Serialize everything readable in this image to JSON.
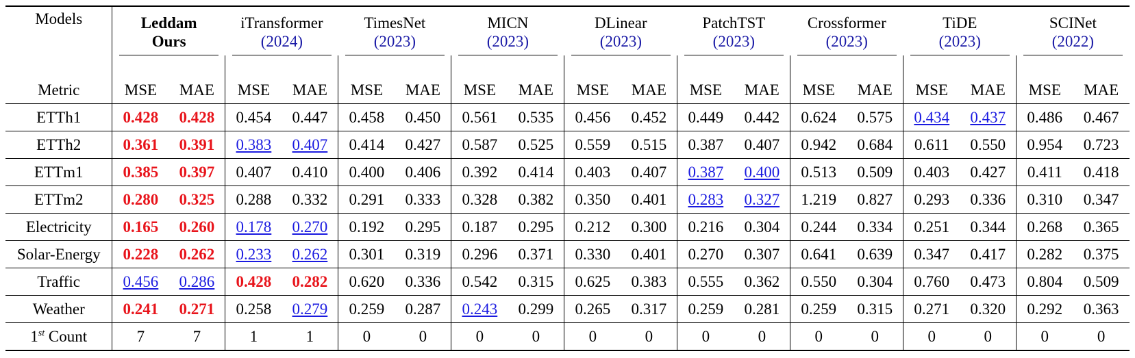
{
  "header": {
    "models_label": "Models",
    "metric_label": "Metric",
    "metrics": [
      "MSE",
      "MAE"
    ],
    "models": [
      {
        "name": "Leddam",
        "sub": "Ours"
      },
      {
        "name": "iTransformer",
        "year": "(2024)"
      },
      {
        "name": "TimesNet",
        "year": "(2023)"
      },
      {
        "name": "MICN",
        "year": "(2023)"
      },
      {
        "name": "DLinear",
        "year": "(2023)"
      },
      {
        "name": "PatchTST",
        "year": "(2023)"
      },
      {
        "name": "Crossformer",
        "year": "(2023)"
      },
      {
        "name": "TiDE",
        "year": "(2023)"
      },
      {
        "name": "SCINet",
        "year": "(2022)"
      }
    ]
  },
  "rows": [
    {
      "label": "ETTh1",
      "values": [
        "0.428",
        "0.428",
        "0.454",
        "0.447",
        "0.458",
        "0.450",
        "0.561",
        "0.535",
        "0.456",
        "0.452",
        "0.449",
        "0.442",
        "0.624",
        "0.575",
        "0.434",
        "0.437",
        "0.486",
        "0.467"
      ],
      "best": [
        0,
        1
      ],
      "second": [
        14,
        15
      ]
    },
    {
      "label": "ETTh2",
      "values": [
        "0.361",
        "0.391",
        "0.383",
        "0.407",
        "0.414",
        "0.427",
        "0.587",
        "0.525",
        "0.559",
        "0.515",
        "0.387",
        "0.407",
        "0.942",
        "0.684",
        "0.611",
        "0.550",
        "0.954",
        "0.723"
      ],
      "best": [
        0,
        1
      ],
      "second": [
        2,
        3
      ]
    },
    {
      "label": "ETTm1",
      "values": [
        "0.385",
        "0.397",
        "0.407",
        "0.410",
        "0.400",
        "0.406",
        "0.392",
        "0.414",
        "0.403",
        "0.407",
        "0.387",
        "0.400",
        "0.513",
        "0.509",
        "0.403",
        "0.427",
        "0.411",
        "0.418"
      ],
      "best": [
        0,
        1
      ],
      "second": [
        10,
        11
      ]
    },
    {
      "label": "ETTm2",
      "values": [
        "0.280",
        "0.325",
        "0.288",
        "0.332",
        "0.291",
        "0.333",
        "0.328",
        "0.382",
        "0.350",
        "0.401",
        "0.283",
        "0.327",
        "1.219",
        "0.827",
        "0.293",
        "0.336",
        "0.310",
        "0.347"
      ],
      "best": [
        0,
        1
      ],
      "second": [
        10,
        11
      ]
    },
    {
      "label": "Electricity",
      "values": [
        "0.165",
        "0.260",
        "0.178",
        "0.270",
        "0.192",
        "0.295",
        "0.187",
        "0.295",
        "0.212",
        "0.300",
        "0.216",
        "0.304",
        "0.244",
        "0.334",
        "0.251",
        "0.344",
        "0.268",
        "0.365"
      ],
      "best": [
        0,
        1
      ],
      "second": [
        2,
        3
      ]
    },
    {
      "label": "Solar-Energy",
      "values": [
        "0.228",
        "0.262",
        "0.233",
        "0.262",
        "0.301",
        "0.319",
        "0.296",
        "0.371",
        "0.330",
        "0.401",
        "0.270",
        "0.307",
        "0.641",
        "0.639",
        "0.347",
        "0.417",
        "0.282",
        "0.375"
      ],
      "best": [
        0,
        1
      ],
      "second": [
        2,
        3
      ]
    },
    {
      "label": "Traffic",
      "values": [
        "0.456",
        "0.286",
        "0.428",
        "0.282",
        "0.620",
        "0.336",
        "0.542",
        "0.315",
        "0.625",
        "0.383",
        "0.555",
        "0.362",
        "0.550",
        "0.304",
        "0.760",
        "0.473",
        "0.804",
        "0.509"
      ],
      "best": [
        2,
        3
      ],
      "second": [
        0,
        1
      ]
    },
    {
      "label": "Weather",
      "values": [
        "0.241",
        "0.271",
        "0.258",
        "0.279",
        "0.259",
        "0.287",
        "0.243",
        "0.299",
        "0.265",
        "0.317",
        "0.259",
        "0.281",
        "0.259",
        "0.315",
        "0.271",
        "0.320",
        "0.292",
        "0.363"
      ],
      "best": [
        0,
        1
      ],
      "second": [
        3,
        6
      ]
    }
  ],
  "count_row": {
    "label_base": "1",
    "label_sup": "st",
    "label_rest": "Count",
    "values": [
      "7",
      "7",
      "1",
      "1",
      "0",
      "0",
      "0",
      "0",
      "0",
      "0",
      "0",
      "0",
      "0",
      "0",
      "0",
      "0",
      "0",
      "0"
    ]
  }
}
